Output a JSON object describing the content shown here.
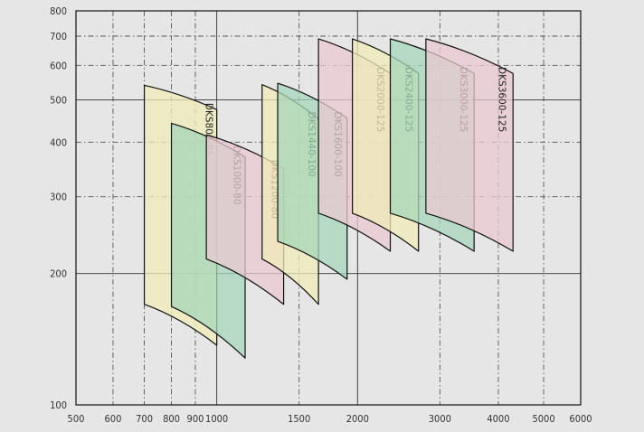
{
  "chart_data": {
    "type": "area",
    "x_scale": "log",
    "y_scale": "log",
    "xlim": [
      500,
      6000
    ],
    "ylim": [
      100,
      800
    ],
    "x_ticks": [
      500,
      600,
      700,
      800,
      900,
      1000,
      1500,
      2000,
      3000,
      4000,
      5000,
      6000
    ],
    "y_ticks": [
      100,
      200,
      300,
      400,
      500,
      600,
      700,
      800
    ],
    "x_ticks_labeled": [
      500,
      600,
      700,
      800,
      900,
      1000,
      1500,
      2000,
      3000,
      4000,
      5000,
      6000
    ],
    "y_ticks_labeled": [
      100,
      200,
      300,
      400,
      500,
      600,
      700,
      800
    ],
    "x_grid_dashed": [
      600,
      700,
      800,
      900,
      1500,
      3000,
      4000,
      5000
    ],
    "x_grid_solid": [
      1000,
      2000
    ],
    "y_grid_dashed": [
      300,
      400,
      600,
      700
    ],
    "y_grid_solid": [
      200,
      500
    ],
    "grid": true,
    "legend": "none",
    "colors": {
      "yellow": "#efebb8",
      "pink": "#e9c8d2",
      "green": "#a6d6ba",
      "line": "#111111",
      "background": "#e6e6e6"
    },
    "series": [
      {
        "name": "DKS800-85",
        "color": "yellow",
        "x_min": 700,
        "x_max": 1000,
        "y_top": [
          540,
          475
        ],
        "y_bottom": [
          170,
          137
        ],
        "label_x": 948,
        "label_y": 492
      },
      {
        "name": "DKS1000-80",
        "color": "green",
        "x_min": 800,
        "x_max": 1150,
        "y_top": [
          442,
          370
        ],
        "y_bottom": [
          168,
          128
        ],
        "label_x": 1087,
        "label_y": 393
      },
      {
        "name": "DKS1200-80",
        "color": "pink",
        "x_min": 950,
        "x_max": 1390,
        "y_top": [
          416,
          348
        ],
        "y_bottom": [
          216,
          170
        ],
        "label_x": 1310,
        "label_y": 365
      },
      {
        "name": "DKS1440-100",
        "color": "yellow",
        "x_min": 1250,
        "x_max": 1650,
        "y_top": [
          542,
          452
        ],
        "y_bottom": [
          216,
          170
        ],
        "label_x": 1570,
        "label_y": 470
      },
      {
        "name": "DKS1600-100",
        "color": "green",
        "x_min": 1350,
        "x_max": 1900,
        "y_top": [
          546,
          454
        ],
        "y_bottom": [
          237,
          194
        ],
        "label_x": 1785,
        "label_y": 470
      },
      {
        "name": "DKS2000-125",
        "color": "pink",
        "x_min": 1650,
        "x_max": 2350,
        "y_top": [
          690,
          575
        ],
        "y_bottom": [
          275,
          225
        ],
        "label_x": 2205,
        "label_y": 595
      },
      {
        "name": "DKS2400-125",
        "color": "yellow",
        "x_min": 1950,
        "x_max": 2700,
        "y_top": [
          690,
          575
        ],
        "y_bottom": [
          275,
          225
        ],
        "label_x": 2535,
        "label_y": 595
      },
      {
        "name": "DKS3000-125",
        "color": "green",
        "x_min": 2350,
        "x_max": 3550,
        "y_top": [
          690,
          575
        ],
        "y_bottom": [
          275,
          225
        ],
        "label_x": 3320,
        "label_y": 595
      },
      {
        "name": "DKS3600-125",
        "color": "pink",
        "x_min": 2800,
        "x_max": 4300,
        "y_top": [
          690,
          575
        ],
        "y_bottom": [
          275,
          225
        ],
        "label_x": 4010,
        "label_y": 595
      }
    ]
  }
}
